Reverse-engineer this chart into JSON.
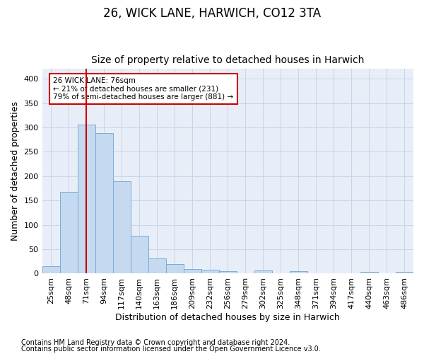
{
  "title": "26, WICK LANE, HARWICH, CO12 3TA",
  "subtitle": "Size of property relative to detached houses in Harwich",
  "xlabel": "Distribution of detached houses by size in Harwich",
  "ylabel": "Number of detached properties",
  "footnote1": "Contains HM Land Registry data © Crown copyright and database right 2024.",
  "footnote2": "Contains public sector information licensed under the Open Government Licence v3.0.",
  "categories": [
    "25sqm",
    "48sqm",
    "71sqm",
    "94sqm",
    "117sqm",
    "140sqm",
    "163sqm",
    "186sqm",
    "209sqm",
    "232sqm",
    "256sqm",
    "279sqm",
    "302sqm",
    "325sqm",
    "348sqm",
    "371sqm",
    "394sqm",
    "417sqm",
    "440sqm",
    "463sqm",
    "486sqm"
  ],
  "values": [
    15,
    167,
    305,
    289,
    190,
    78,
    31,
    19,
    9,
    8,
    5,
    0,
    6,
    0,
    5,
    0,
    0,
    0,
    3,
    0,
    3
  ],
  "bar_color": "#c5d9f0",
  "bar_edge_color": "#7aadd4",
  "property_line_x": 2.0,
  "annotation_text_line1": "26 WICK LANE: 76sqm",
  "annotation_text_line2": "← 21% of detached houses are smaller (231)",
  "annotation_text_line3": "79% of semi-detached houses are larger (881) →",
  "annotation_box_color": "#ffffff",
  "annotation_border_color": "#cc0000",
  "vline_color": "#cc0000",
  "grid_color": "#c8d4e8",
  "plot_bg_color": "#e8eef8",
  "fig_bg_color": "#ffffff",
  "title_fontsize": 12,
  "subtitle_fontsize": 10,
  "tick_fontsize": 8,
  "ylabel_fontsize": 9,
  "xlabel_fontsize": 9,
  "footnote_fontsize": 7,
  "ylim": [
    0,
    420
  ],
  "yticks": [
    0,
    50,
    100,
    150,
    200,
    250,
    300,
    350,
    400
  ]
}
